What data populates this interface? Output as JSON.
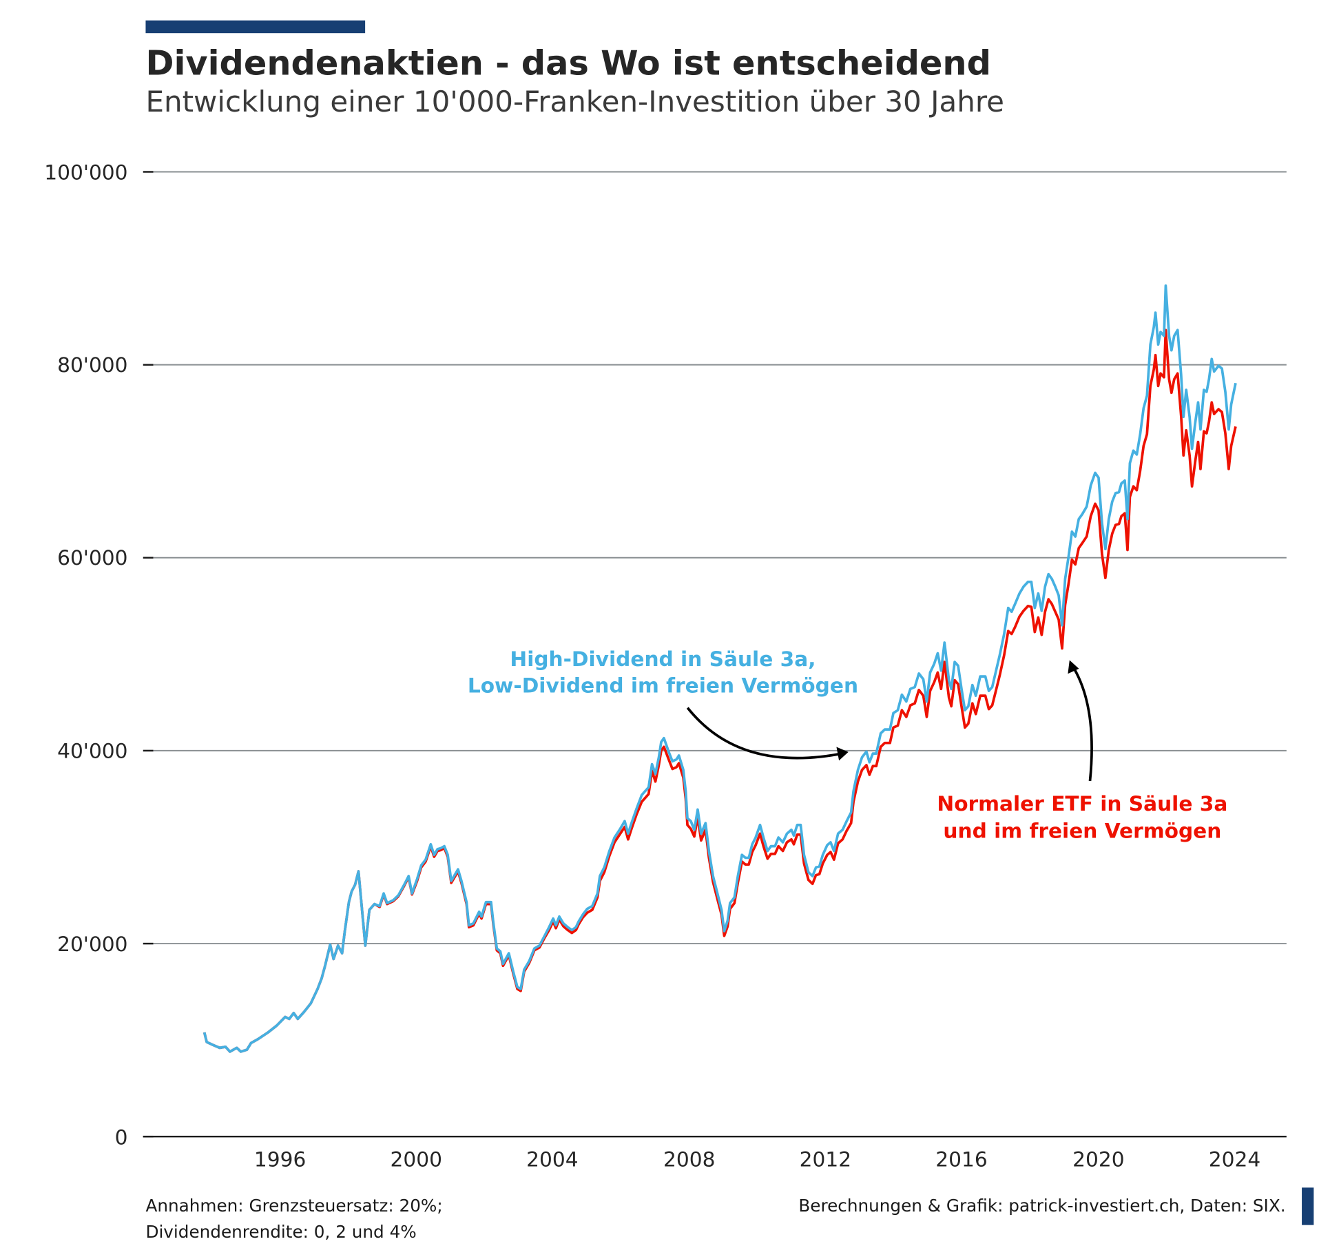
{
  "header": {
    "title": "Dividendenaktien - das Wo ist entscheidend",
    "subtitle": "Entwicklung einer 10'000-Franken-Investition über 30 Jahre",
    "accent_color": "#173f73"
  },
  "footer": {
    "note_line1": "Annahmen: Grenzsteuersatz: 20%;",
    "note_line2": "Dividendenrendite: 0, 2 und 4%",
    "source": "Berechnungen & Grafik: patrick-investiert.ch, Daten: SIX."
  },
  "chart_data": {
    "type": "line",
    "title": "Dividendenaktien - das Wo ist entscheidend",
    "subtitle": "Entwicklung einer 10'000-Franken-Investition über 30 Jahre",
    "xlabel": "",
    "ylabel": "",
    "xlim": [
      1992.4,
      2025.6
    ],
    "ylim": [
      0,
      100000
    ],
    "grid": "horizontal",
    "x_ticks": [
      "1996",
      "2000",
      "2004",
      "2008",
      "2012",
      "2016",
      "2020",
      "2024"
    ],
    "y_ticks": [
      0,
      20000,
      40000,
      60000,
      80000,
      100000
    ],
    "y_tick_labels": [
      "0",
      "20'000",
      "40'000",
      "60'000",
      "80'000",
      "100'000"
    ],
    "annotations": [
      {
        "series": "blue",
        "line1": "High-Dividend in Säule 3a,",
        "line2": "Low-Dividend im freien Vermögen",
        "color": "#45b0e1"
      },
      {
        "series": "red",
        "line1": "Normaler ETF in Säule 3a",
        "line2": "und im freien Vermögen",
        "color": "#ee1100"
      }
    ],
    "x": [
      1993.78,
      1993.85,
      1994.03,
      1994.23,
      1994.4,
      1994.53,
      1994.73,
      1994.85,
      1995.03,
      1995.15,
      1995.35,
      1995.65,
      1995.9,
      1996.15,
      1996.27,
      1996.4,
      1996.52,
      1996.7,
      1996.9,
      1997.1,
      1997.22,
      1997.32,
      1997.47,
      1997.57,
      1997.7,
      1997.82,
      1997.9,
      1998.02,
      1998.1,
      1998.2,
      1998.3,
      1998.5,
      1998.62,
      1998.77,
      1998.92,
      1999.04,
      1999.14,
      1999.32,
      1999.47,
      1999.64,
      1999.77,
      1999.87,
      2000.02,
      2000.14,
      2000.27,
      2000.42,
      2000.52,
      2000.62,
      2000.72,
      2000.82,
      2000.92,
      2001.02,
      2001.22,
      2001.32,
      2001.47,
      2001.54,
      2001.67,
      2001.84,
      2001.91,
      2002.04,
      2002.19,
      2002.26,
      2002.36,
      2002.46,
      2002.54,
      2002.71,
      2002.84,
      2002.96,
      2003.06,
      2003.16,
      2003.31,
      2003.46,
      2003.61,
      2003.76,
      2003.89,
      2004.01,
      2004.09,
      2004.19,
      2004.31,
      2004.44,
      2004.56,
      2004.68,
      2004.76,
      2004.88,
      2005.01,
      2005.16,
      2005.31,
      2005.38,
      2005.51,
      2005.66,
      2005.81,
      2005.96,
      2006.11,
      2006.21,
      2006.31,
      2006.46,
      2006.61,
      2006.71,
      2006.81,
      2006.91,
      2007.01,
      2007.11,
      2007.18,
      2007.26,
      2007.41,
      2007.51,
      2007.63,
      2007.7,
      2007.83,
      2007.9,
      2007.95,
      2008.05,
      2008.15,
      2008.25,
      2008.35,
      2008.48,
      2008.58,
      2008.7,
      2008.83,
      2008.95,
      2009.03,
      2009.13,
      2009.2,
      2009.33,
      2009.43,
      2009.55,
      2009.65,
      2009.75,
      2009.85,
      2009.95,
      2010.08,
      2010.18,
      2010.3,
      2010.4,
      2010.52,
      2010.62,
      2010.75,
      2010.87,
      2011.0,
      2011.07,
      2011.17,
      2011.27,
      2011.37,
      2011.5,
      2011.62,
      2011.72,
      2011.82,
      2011.92,
      2012.05,
      2012.15,
      2012.25,
      2012.37,
      2012.5,
      2012.62,
      2012.75,
      2012.82,
      2012.95,
      2013.07,
      2013.2,
      2013.29,
      2013.39,
      2013.49,
      2013.62,
      2013.74,
      2013.89,
      2013.99,
      2014.12,
      2014.24,
      2014.37,
      2014.49,
      2014.62,
      2014.74,
      2014.87,
      2014.97,
      2015.07,
      2015.19,
      2015.29,
      2015.39,
      2015.49,
      2015.62,
      2015.69,
      2015.79,
      2015.89,
      2015.99,
      2016.09,
      2016.19,
      2016.31,
      2016.41,
      2016.54,
      2016.69,
      2016.79,
      2016.89,
      2016.99,
      2017.11,
      2017.24,
      2017.36,
      2017.46,
      2017.56,
      2017.69,
      2017.81,
      2017.94,
      2018.04,
      2018.14,
      2018.24,
      2018.34,
      2018.44,
      2018.54,
      2018.64,
      2018.74,
      2018.84,
      2018.94,
      2019.03,
      2019.13,
      2019.23,
      2019.33,
      2019.43,
      2019.53,
      2019.66,
      2019.78,
      2019.91,
      2020.01,
      2020.11,
      2020.21,
      2020.31,
      2020.41,
      2020.51,
      2020.61,
      2020.68,
      2020.78,
      2020.86,
      2020.93,
      2021.03,
      2021.13,
      2021.23,
      2021.33,
      2021.43,
      2021.53,
      2021.63,
      2021.68,
      2021.76,
      2021.83,
      2021.93,
      2021.98,
      2022.08,
      2022.15,
      2022.23,
      2022.33,
      2022.43,
      2022.5,
      2022.58,
      2022.68,
      2022.75,
      2022.85,
      2022.93,
      2023.0,
      2023.1,
      2023.18,
      2023.25,
      2023.33,
      2023.4,
      2023.53,
      2023.63,
      2023.73,
      2023.83,
      2023.9,
      2024.03
    ],
    "series": [
      {
        "key": "red",
        "color": "#ee1100",
        "values": [
          10800,
          9800,
          9500,
          9200,
          9300,
          8800,
          9200,
          8800,
          9000,
          9700,
          10100,
          10800,
          11500,
          12400,
          12200,
          12800,
          12200,
          12900,
          13800,
          15300,
          16400,
          17700,
          19900,
          18400,
          19800,
          19000,
          21300,
          24300,
          25400,
          26100,
          27500,
          19800,
          23500,
          24100,
          23800,
          25100,
          24100,
          24400,
          24900,
          26000,
          26900,
          25100,
          26500,
          27900,
          28500,
          30100,
          29000,
          29600,
          29700,
          29900,
          29000,
          26300,
          27500,
          26300,
          24100,
          21700,
          21900,
          23100,
          22600,
          24100,
          24100,
          21900,
          19300,
          19000,
          17700,
          18800,
          16900,
          15300,
          15100,
          17100,
          18000,
          19300,
          19600,
          20600,
          21400,
          22300,
          21600,
          22500,
          21800,
          21400,
          21100,
          21400,
          22000,
          22700,
          23200,
          23500,
          24800,
          26500,
          27400,
          29100,
          30500,
          31300,
          32100,
          30800,
          31900,
          33400,
          34700,
          35100,
          35500,
          37900,
          36800,
          38500,
          40000,
          40400,
          39000,
          38100,
          38300,
          38700,
          37200,
          35000,
          32300,
          31900,
          31100,
          33100,
          30700,
          31800,
          28900,
          26400,
          24600,
          23000,
          20800,
          21800,
          23600,
          24200,
          26300,
          28500,
          28200,
          28200,
          29500,
          30200,
          31400,
          30100,
          28800,
          29300,
          29300,
          30100,
          29600,
          30500,
          30800,
          30300,
          31300,
          31300,
          28300,
          26600,
          26200,
          27100,
          27200,
          28300,
          29200,
          29500,
          28700,
          30400,
          30800,
          31700,
          32500,
          34700,
          36800,
          38000,
          38500,
          37500,
          38400,
          38400,
          40400,
          40800,
          40800,
          42400,
          42600,
          44200,
          43500,
          44700,
          44900,
          46300,
          45700,
          43500,
          46200,
          47100,
          48100,
          46400,
          49200,
          45500,
          44600,
          47300,
          46900,
          44600,
          42400,
          42800,
          44900,
          43800,
          45700,
          45700,
          44300,
          44700,
          46100,
          47800,
          49900,
          52400,
          52100,
          52800,
          53900,
          54500,
          55000,
          54900,
          52300,
          53800,
          52000,
          54400,
          55700,
          55200,
          54400,
          53600,
          50600,
          55100,
          57300,
          59800,
          59300,
          61000,
          61500,
          62200,
          64300,
          65600,
          64900,
          60400,
          57900,
          60800,
          62500,
          63400,
          63500,
          64300,
          64600,
          60800,
          66300,
          67400,
          67000,
          69000,
          71600,
          72800,
          77800,
          79500,
          81000,
          77800,
          79100,
          78700,
          83600,
          78500,
          77100,
          78500,
          79100,
          74700,
          70600,
          73200,
          70600,
          67400,
          70100,
          72000,
          69200,
          73100,
          72900,
          74100,
          76100,
          74900,
          75400,
          75100,
          72900,
          69200,
          71600,
          73600
        ]
      },
      {
        "key": "blue",
        "color": "#45b0e1",
        "values": [
          10800,
          9800,
          9500,
          9200,
          9300,
          8800,
          9200,
          8800,
          9000,
          9700,
          10100,
          10800,
          11500,
          12400,
          12200,
          12800,
          12200,
          12900,
          13800,
          15300,
          16400,
          17700,
          19900,
          18400,
          19800,
          19000,
          21300,
          24300,
          25400,
          26100,
          27500,
          19800,
          23500,
          24100,
          23900,
          25200,
          24200,
          24500,
          25000,
          26100,
          27000,
          25200,
          26700,
          28100,
          28700,
          30300,
          29200,
          29800,
          29900,
          30100,
          29200,
          26500,
          27700,
          26500,
          24300,
          21900,
          22100,
          23300,
          22800,
          24300,
          24300,
          22100,
          19500,
          19200,
          17900,
          19000,
          17100,
          15500,
          15300,
          17300,
          18200,
          19500,
          19800,
          20800,
          21700,
          22600,
          21900,
          22800,
          22100,
          21700,
          21400,
          21700,
          22300,
          23000,
          23600,
          23900,
          25200,
          27000,
          27900,
          29600,
          31000,
          31800,
          32700,
          31400,
          32500,
          34000,
          35400,
          35800,
          36200,
          38600,
          37600,
          39300,
          40900,
          41300,
          39800,
          38900,
          39100,
          39500,
          38000,
          35800,
          33000,
          32700,
          31800,
          33900,
          31400,
          32500,
          29600,
          27000,
          25200,
          23500,
          21300,
          22400,
          24200,
          24800,
          27000,
          29200,
          28900,
          28900,
          30300,
          31000,
          32300,
          31000,
          29600,
          30100,
          30100,
          31000,
          30500,
          31400,
          31800,
          31200,
          32300,
          32300,
          29200,
          27400,
          27000,
          27900,
          28000,
          29200,
          30200,
          30500,
          29600,
          31400,
          31800,
          32700,
          33600,
          35800,
          38000,
          39300,
          39900,
          38800,
          39700,
          39700,
          41800,
          42200,
          42200,
          43900,
          44200,
          45800,
          45100,
          46400,
          46600,
          48000,
          47400,
          45100,
          48100,
          49000,
          50100,
          48300,
          51200,
          47300,
          46400,
          49200,
          48800,
          46400,
          44200,
          44600,
          46800,
          45700,
          47700,
          47700,
          46200,
          46600,
          48100,
          49900,
          52100,
          54800,
          54400,
          55200,
          56300,
          57000,
          57500,
          57500,
          54800,
          56300,
          54500,
          57000,
          58300,
          57800,
          57000,
          56100,
          53000,
          57800,
          60100,
          62700,
          62200,
          64000,
          64500,
          65300,
          67500,
          68800,
          68300,
          63600,
          60900,
          64000,
          65800,
          66700,
          66800,
          67700,
          68000,
          64000,
          69800,
          71100,
          70700,
          72800,
          75500,
          76800,
          82100,
          83900,
          85400,
          82100,
          83400,
          83000,
          88200,
          83000,
          81500,
          83000,
          83600,
          79000,
          74600,
          77400,
          74600,
          71300,
          74100,
          76100,
          73300,
          77400,
          77200,
          78500,
          80600,
          79300,
          79900,
          79600,
          77200,
          73300,
          75900,
          78100
        ]
      }
    ]
  }
}
